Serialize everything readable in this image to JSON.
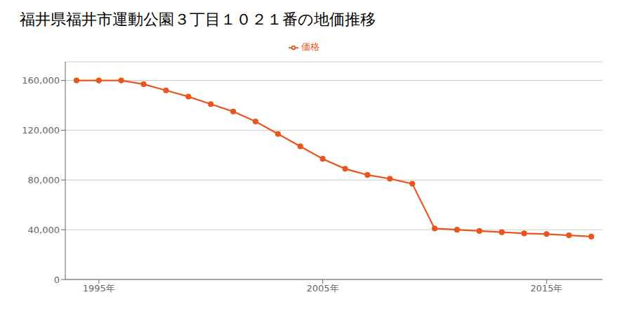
{
  "chart_data": {
    "type": "line",
    "title": "福井県福井市運動公園３丁目１０２１番の地価推移",
    "x": [
      1994,
      1995,
      1996,
      1997,
      1998,
      1999,
      2000,
      2001,
      2002,
      2003,
      2004,
      2005,
      2006,
      2007,
      2008,
      2009,
      2010,
      2011,
      2012,
      2013,
      2014,
      2015,
      2016,
      2017
    ],
    "series": [
      {
        "name": "価格",
        "color": "#e8561e",
        "marker": "circle",
        "values": [
          160000,
          160000,
          160000,
          157000,
          152000,
          147000,
          141000,
          135000,
          127000,
          117000,
          107000,
          97000,
          89000,
          84000,
          81000,
          77000,
          41000,
          40000,
          39000,
          38000,
          37000,
          36500,
          35500,
          34500
        ]
      }
    ],
    "xlim": [
      1993.5,
      2017.5
    ],
    "xticks": [
      {
        "value": 1995,
        "label": "1995年"
      },
      {
        "value": 2005,
        "label": "2005年"
      },
      {
        "value": 2015,
        "label": "2015年"
      }
    ],
    "ylim": [
      0,
      175000
    ],
    "yticks": [
      0,
      {
        "value": 40000,
        "label": "40,000"
      },
      {
        "value": 80000,
        "label": "80,000"
      },
      {
        "value": 120000,
        "label": "120,000"
      },
      {
        "value": 160000,
        "label": "160,000"
      }
    ],
    "grid": true,
    "legend": "top"
  }
}
